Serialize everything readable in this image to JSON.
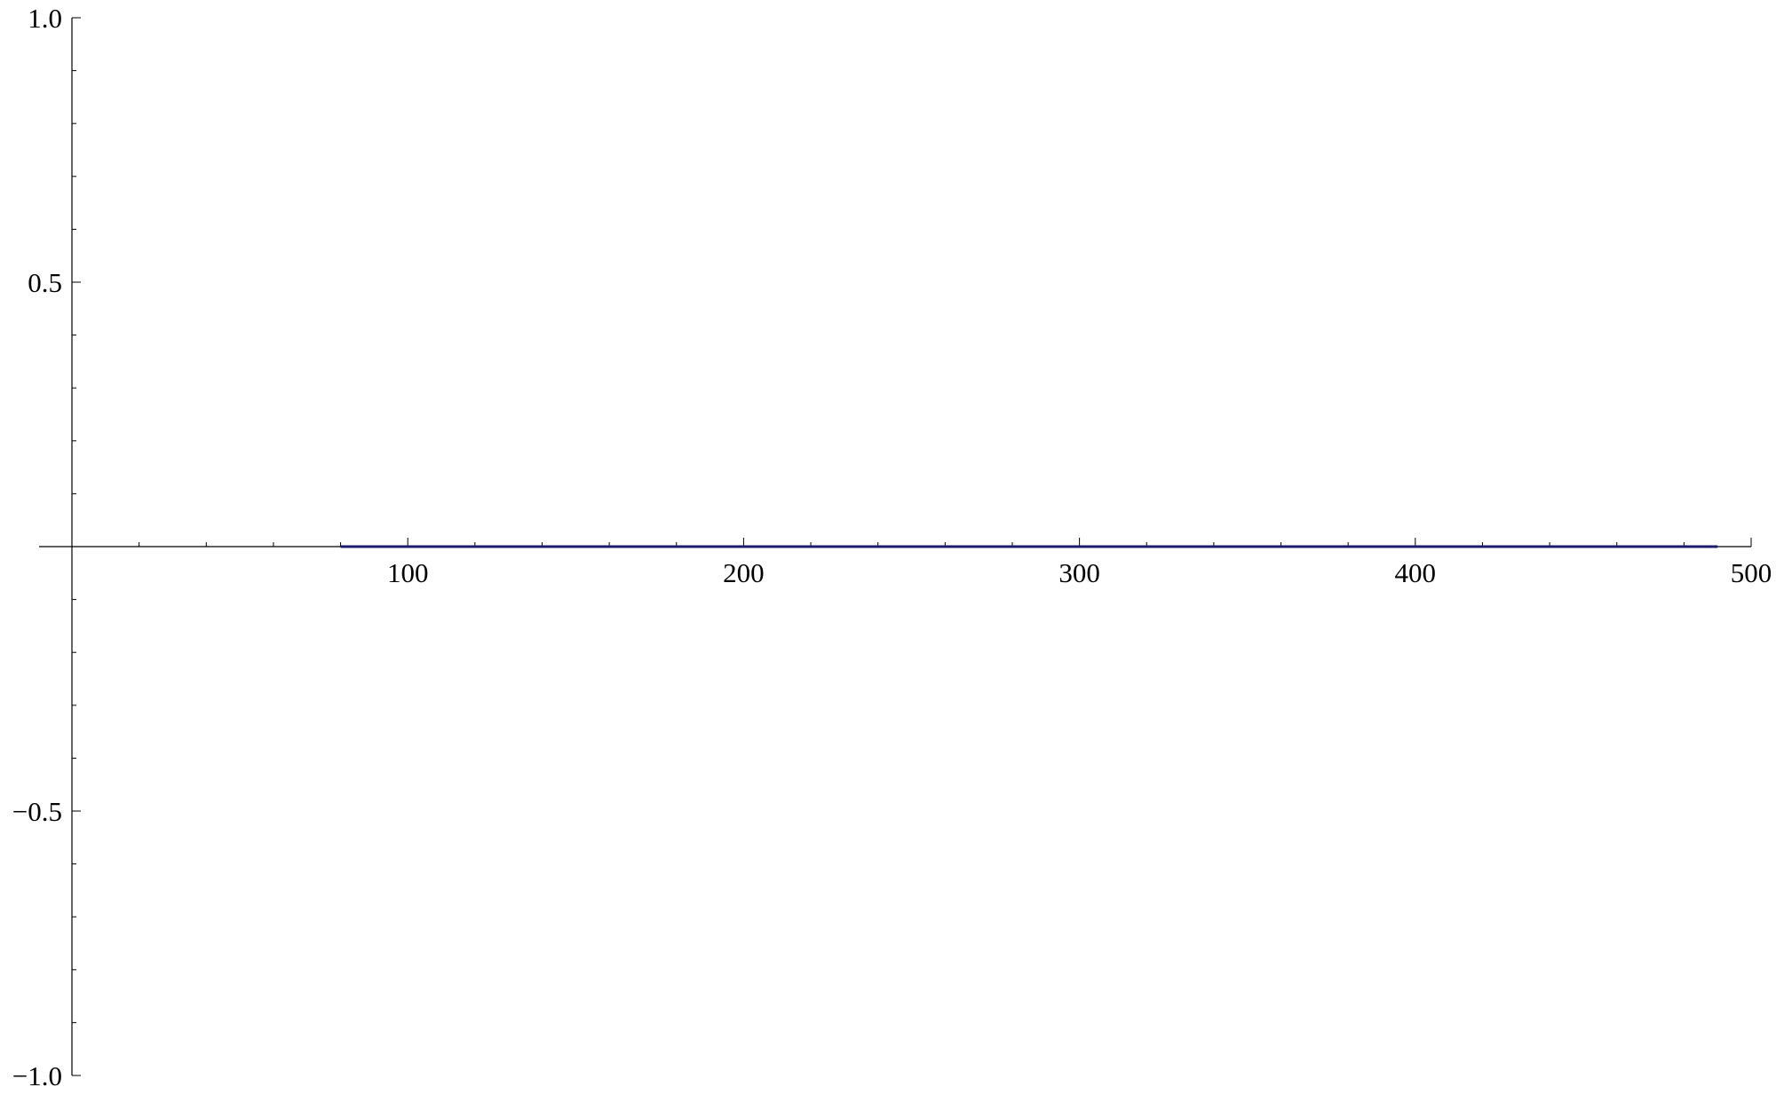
{
  "chart_data": {
    "type": "line",
    "title": "",
    "xlabel": "",
    "ylabel": "",
    "xlim": [
      0,
      500
    ],
    "ylim": [
      -1.0,
      1.0
    ],
    "x_ticks": [
      100,
      200,
      300,
      400,
      500
    ],
    "x_tick_labels": [
      "100",
      "200",
      "300",
      "400",
      "500"
    ],
    "y_ticks": [
      1.0,
      0.5,
      -0.5,
      -1.0
    ],
    "y_tick_labels": [
      "1.0",
      "0.5",
      "−0.5",
      "−1.0"
    ],
    "x_minor_step": 20,
    "y_minor_step": 0.1,
    "grid": false,
    "series": [
      {
        "color": "#1a1a6e",
        "x": [
          80,
          490
        ],
        "y": [
          0,
          0
        ]
      }
    ]
  }
}
